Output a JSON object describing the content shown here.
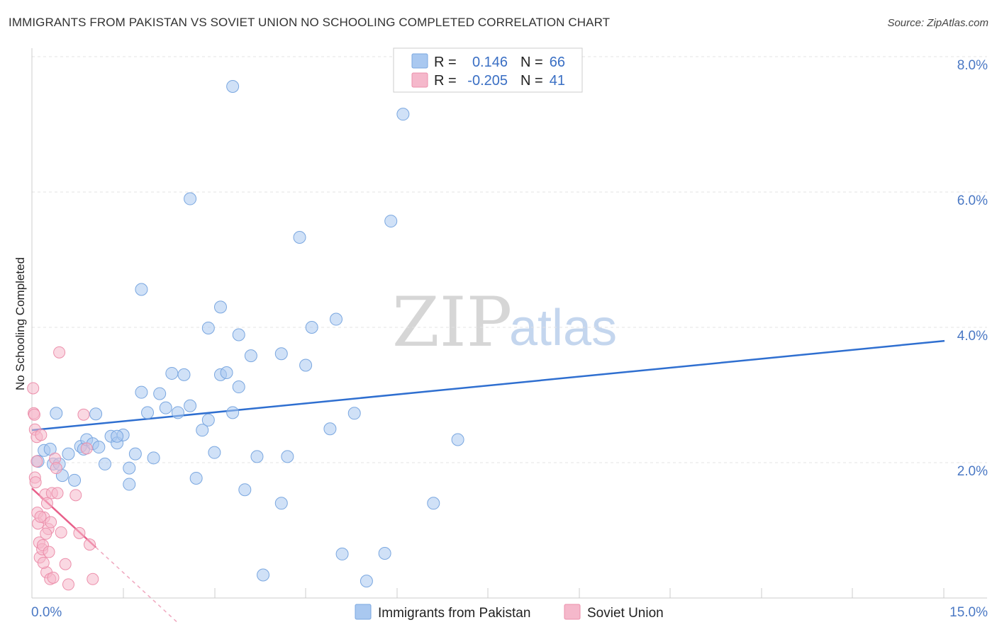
{
  "title": "IMMIGRANTS FROM PAKISTAN VS SOVIET UNION NO SCHOOLING COMPLETED CORRELATION CHART",
  "source": "Source: ZipAtlas.com",
  "watermark": {
    "zip": "ZIP",
    "atlas": "atlas"
  },
  "legend": {
    "rows": [
      {
        "r_label": "R =",
        "r_value": "0.146",
        "n_label": "N =",
        "n_value": "66",
        "color": "#a9c8f0"
      },
      {
        "r_label": "R =",
        "r_value": "-0.205",
        "n_label": "N =",
        "n_value": "41",
        "color": "#f5b8cb"
      }
    ]
  },
  "bottom_legend": [
    {
      "label": "Immigrants from Pakistan",
      "color": "#a9c8f0"
    },
    {
      "label": "Soviet Union",
      "color": "#f5b8cb"
    }
  ],
  "chart_data": {
    "type": "scatter",
    "title": "IMMIGRANTS FROM PAKISTAN VS SOVIET UNION NO SCHOOLING COMPLETED CORRELATION CHART",
    "xlabel": "",
    "ylabel": "No Schooling Completed",
    "xlim": [
      0,
      15
    ],
    "ylim": [
      0,
      8.3
    ],
    "x_tick_labels": [
      "0.0%",
      "15.0%"
    ],
    "y_ticks": [
      2,
      4,
      6,
      8
    ],
    "y_tick_labels": [
      "2.0%",
      "4.0%",
      "6.0%",
      "8.0%"
    ],
    "grid": true,
    "series": [
      {
        "name": "Immigrants from Pakistan",
        "color": "#a9c8f0",
        "stroke": "#7aa7e0",
        "trend": {
          "x0": 0,
          "y0": 2.48,
          "x1": 15,
          "y1": 3.8,
          "color": "#2f6fd0",
          "dashed_extension": false
        },
        "points": [
          [
            0.1,
            2.02
          ],
          [
            0.2,
            2.18
          ],
          [
            0.3,
            2.2
          ],
          [
            0.35,
            1.98
          ],
          [
            0.4,
            2.73
          ],
          [
            0.5,
            1.81
          ],
          [
            0.6,
            2.13
          ],
          [
            0.7,
            1.74
          ],
          [
            0.8,
            2.24
          ],
          [
            0.85,
            2.2
          ],
          [
            0.9,
            2.34
          ],
          [
            1.0,
            2.28
          ],
          [
            1.05,
            2.72
          ],
          [
            1.1,
            2.23
          ],
          [
            1.2,
            1.98
          ],
          [
            1.3,
            2.39
          ],
          [
            1.4,
            2.29
          ],
          [
            1.5,
            2.41
          ],
          [
            1.6,
            1.92
          ],
          [
            1.7,
            2.13
          ],
          [
            1.8,
            3.04
          ],
          [
            1.9,
            2.74
          ],
          [
            2.0,
            2.07
          ],
          [
            2.1,
            3.02
          ],
          [
            2.2,
            2.81
          ],
          [
            2.3,
            3.32
          ],
          [
            2.4,
            2.74
          ],
          [
            2.5,
            3.3
          ],
          [
            2.6,
            2.84
          ],
          [
            2.7,
            1.77
          ],
          [
            2.8,
            2.48
          ],
          [
            2.9,
            2.63
          ],
          [
            3.0,
            2.15
          ],
          [
            3.1,
            3.3
          ],
          [
            3.2,
            3.33
          ],
          [
            3.3,
            2.74
          ],
          [
            3.4,
            3.12
          ],
          [
            3.5,
            1.6
          ],
          [
            3.6,
            3.58
          ],
          [
            3.7,
            2.09
          ],
          [
            3.8,
            0.34
          ],
          [
            4.1,
            1.4
          ],
          [
            4.2,
            2.09
          ],
          [
            4.5,
            3.44
          ],
          [
            4.9,
            2.5
          ],
          [
            5.1,
            0.65
          ],
          [
            5.3,
            2.73
          ],
          [
            5.5,
            0.25
          ],
          [
            5.8,
            0.66
          ],
          [
            7.0,
            2.34
          ],
          [
            1.6,
            1.68
          ],
          [
            1.8,
            4.56
          ],
          [
            2.6,
            5.9
          ],
          [
            3.4,
            3.89
          ],
          [
            3.1,
            4.3
          ],
          [
            2.9,
            3.99
          ],
          [
            4.4,
            5.33
          ],
          [
            4.1,
            3.61
          ],
          [
            4.6,
            4.0
          ],
          [
            5.9,
            5.57
          ],
          [
            6.1,
            7.15
          ],
          [
            3.3,
            7.56
          ],
          [
            5.0,
            4.12
          ],
          [
            6.6,
            1.4
          ],
          [
            0.45,
            1.98
          ],
          [
            1.4,
            2.39
          ]
        ]
      },
      {
        "name": "Soviet Union",
        "color": "#f5b8cb",
        "stroke": "#ec8fab",
        "trend": {
          "x0": 0,
          "y0": 1.62,
          "x1": 1.05,
          "y1": 0.75,
          "color": "#e8608a",
          "dashed_to_x": 2.4
        },
        "points": [
          [
            0.02,
            3.1
          ],
          [
            0.03,
            2.73
          ],
          [
            0.04,
            2.71
          ],
          [
            0.05,
            2.49
          ],
          [
            0.05,
            1.78
          ],
          [
            0.06,
            1.71
          ],
          [
            0.08,
            2.38
          ],
          [
            0.09,
            1.26
          ],
          [
            0.1,
            1.1
          ],
          [
            0.12,
            0.82
          ],
          [
            0.13,
            0.6
          ],
          [
            0.15,
            2.41
          ],
          [
            0.17,
            0.72
          ],
          [
            0.18,
            0.78
          ],
          [
            0.2,
            1.19
          ],
          [
            0.22,
            1.53
          ],
          [
            0.24,
            0.38
          ],
          [
            0.25,
            1.4
          ],
          [
            0.27,
            1.02
          ],
          [
            0.28,
            0.68
          ],
          [
            0.3,
            0.28
          ],
          [
            0.33,
            1.55
          ],
          [
            0.35,
            0.3
          ],
          [
            0.38,
            2.06
          ],
          [
            0.4,
            1.92
          ],
          [
            0.45,
            3.63
          ],
          [
            0.48,
            0.97
          ],
          [
            0.55,
            0.5
          ],
          [
            0.6,
            0.2
          ],
          [
            0.72,
            1.52
          ],
          [
            0.78,
            0.96
          ],
          [
            0.85,
            2.71
          ],
          [
            0.95,
            0.79
          ],
          [
            1.0,
            0.28
          ],
          [
            0.08,
            2.02
          ],
          [
            0.14,
            1.2
          ],
          [
            0.19,
            0.52
          ],
          [
            0.23,
            0.95
          ],
          [
            0.31,
            1.12
          ],
          [
            0.42,
            1.55
          ],
          [
            0.9,
            2.21
          ]
        ]
      }
    ]
  }
}
